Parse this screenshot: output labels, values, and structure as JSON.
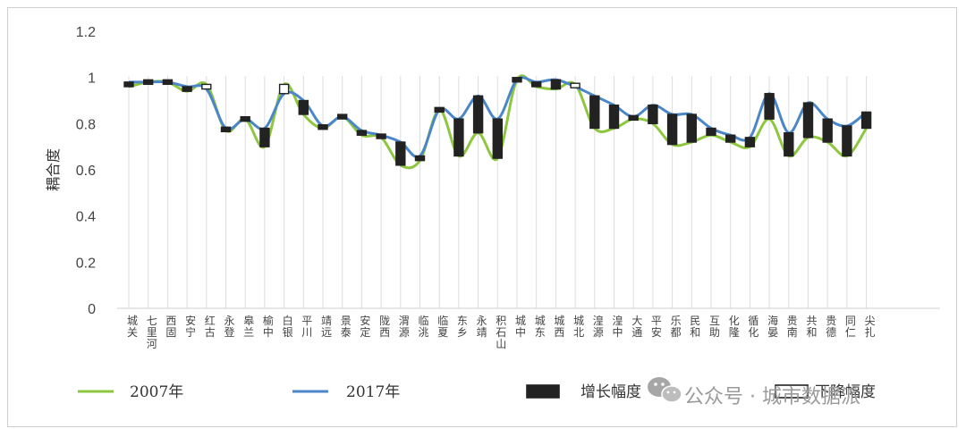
{
  "chart_data": {
    "type": "line",
    "ylabel": "耦合度",
    "ylim": [
      0,
      1.2
    ],
    "yticks": [
      "1.2",
      "1",
      "0.8",
      "0.6",
      "0.4",
      "0.2",
      "0"
    ],
    "grid": {
      "vertical": true,
      "horizontal": false
    },
    "legend_position": "bottom",
    "categories": [
      "城关",
      "七里河",
      "西固",
      "安宁",
      "红古",
      "永登",
      "皋兰",
      "榆中",
      "白银",
      "平川",
      "靖远",
      "景泰",
      "安定",
      "陇西",
      "渭源",
      "临洮",
      "临夏",
      "东乡",
      "永靖",
      "积石山",
      "城中",
      "城东",
      "城西",
      "城北",
      "湟源",
      "湟中",
      "大通",
      "平安",
      "乐都",
      "民和",
      "互助",
      "化隆",
      "循化",
      "海晏",
      "贵南",
      "共和",
      "贵德",
      "同仁",
      "尖扎"
    ],
    "series": [
      {
        "name": "2007年",
        "color": "#8dc63f",
        "values": [
          0.96,
          0.98,
          0.98,
          0.94,
          0.97,
          0.77,
          0.82,
          0.7,
          0.97,
          0.84,
          0.78,
          0.83,
          0.75,
          0.74,
          0.62,
          0.64,
          0.86,
          0.66,
          0.76,
          0.65,
          0.99,
          0.96,
          0.95,
          0.97,
          0.78,
          0.78,
          0.82,
          0.8,
          0.71,
          0.72,
          0.75,
          0.72,
          0.7,
          0.82,
          0.66,
          0.74,
          0.72,
          0.66,
          0.78
        ]
      },
      {
        "name": "2017年",
        "color": "#4a86c8",
        "values": [
          0.98,
          0.98,
          0.98,
          0.96,
          0.95,
          0.78,
          0.82,
          0.78,
          0.93,
          0.9,
          0.79,
          0.83,
          0.77,
          0.75,
          0.72,
          0.66,
          0.86,
          0.82,
          0.92,
          0.82,
          0.99,
          0.98,
          0.99,
          0.96,
          0.92,
          0.88,
          0.83,
          0.88,
          0.84,
          0.84,
          0.78,
          0.75,
          0.74,
          0.93,
          0.76,
          0.89,
          0.82,
          0.79,
          0.85
        ]
      }
    ],
    "bar_legend": [
      {
        "name": "增长幅度",
        "style": "filled",
        "color": "#222222"
      },
      {
        "name": "下降幅度",
        "style": "hollow",
        "color": "#222222"
      }
    ]
  },
  "watermark": {
    "icon": "wechat-icon",
    "text": "公众号 · 城市数据派"
  }
}
